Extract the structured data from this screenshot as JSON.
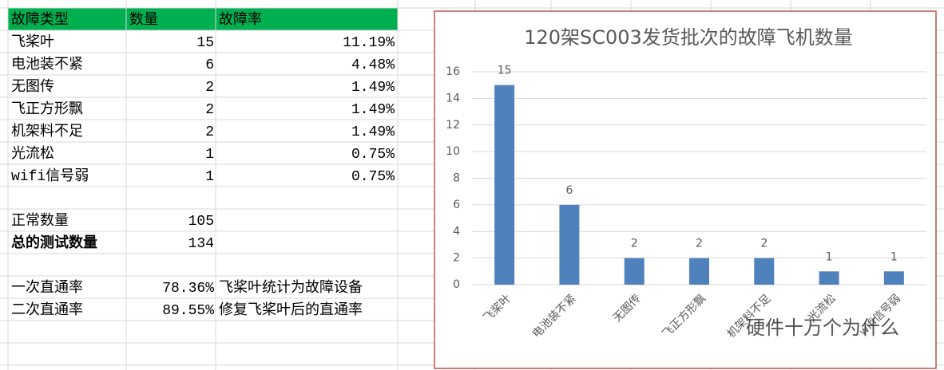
{
  "table": {
    "header": [
      "故障类型",
      "数量",
      "故障率"
    ],
    "failures": [
      [
        "飞桨叶",
        "15",
        "11.19%"
      ],
      [
        "电池装不紧",
        "6",
        "4.48%"
      ],
      [
        "无图传",
        "2",
        "1.49%"
      ],
      [
        "飞正方形飘",
        "2",
        "1.49%"
      ],
      [
        "机架料不足",
        "2",
        "1.49%"
      ],
      [
        "光流松",
        "1",
        "0.75%"
      ],
      [
        "wifi信号弱",
        "1",
        "0.75%"
      ]
    ],
    "totals": [
      [
        "正常数量",
        "105"
      ],
      [
        "总的测试数量",
        "134"
      ]
    ],
    "pass_rates": [
      [
        "一次直通率",
        "78.36%",
        "飞桨叶统计为故障设备"
      ],
      [
        "二次直通率",
        "89.55%",
        "修复飞桨叶后的直通率"
      ]
    ]
  },
  "chart_data": {
    "type": "bar",
    "title": "120架SC003发货批次的故障飞机数量",
    "categories": [
      "飞桨叶",
      "电池装不紧",
      "无图传",
      "飞正方形飘",
      "机架料不足",
      "光流松",
      "wifi信号弱"
    ],
    "values": [
      15,
      6,
      2,
      2,
      2,
      1,
      1
    ],
    "color": "#4f81bd",
    "ylim": [
      0,
      16
    ],
    "yticks": [
      0,
      2,
      4,
      6,
      8,
      10,
      12,
      14,
      16
    ],
    "grid": true
  },
  "watermark": "硬件十万个为什么"
}
